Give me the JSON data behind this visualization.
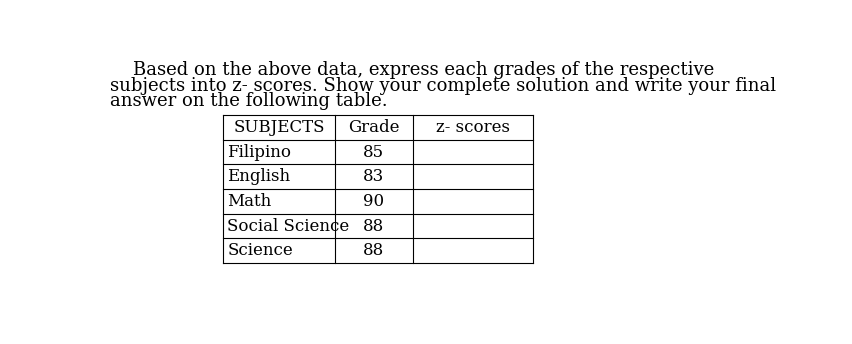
{
  "paragraph_line1": "    Based on the above data, express each grades of the respective",
  "paragraph_line2": "subjects into z- scores. Show your complete solution and write your final",
  "paragraph_line3": "answer on the following table.",
  "table_headers": [
    "SUBJECTS",
    "Grade",
    "z- scores"
  ],
  "table_rows": [
    [
      "Filipino",
      "85",
      ""
    ],
    [
      "English",
      "83",
      ""
    ],
    [
      "Math",
      "90",
      ""
    ],
    [
      "Social Science",
      "88",
      ""
    ],
    [
      "Science",
      "88",
      ""
    ]
  ],
  "font_family": "DejaVu Serif",
  "font_size_text": 13,
  "font_size_table": 12,
  "background_color": "#ffffff",
  "text_color": "#000000"
}
